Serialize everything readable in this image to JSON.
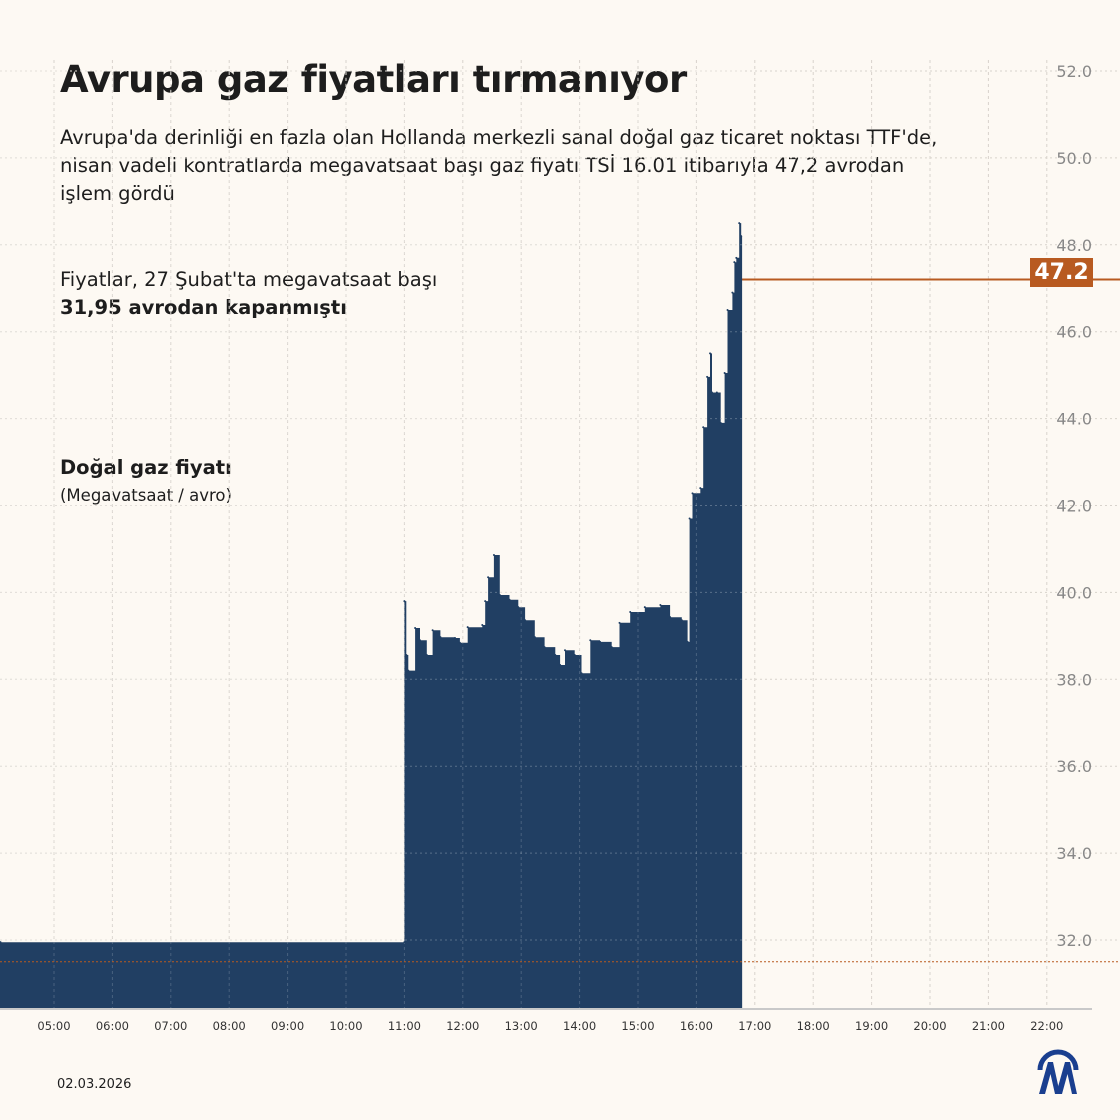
{
  "header": {
    "title": "Avrupa gaz fiyatları tırmanıyor",
    "subtitle": "Avrupa'da derinliği en fazla olan Hollanda merkezli sanal doğal gaz ticaret noktası TTF'de, nisan vadeli kontratlarda megavatsaat başı gaz fiyatı TSİ 16.01 itibarıyla 47,2 avrodan işlem gördü"
  },
  "note": {
    "text_before": "Fiyatlar, 27 Şubat'ta megavatsaat başı ",
    "text_bold": "31,95 avrodan kapanmıştı"
  },
  "footer": {
    "date": "02.03.2026",
    "logo_text": "AA"
  },
  "colors": {
    "background": "#fdf9f3",
    "area": "#213f63",
    "accent": "#b85a20",
    "axis_text": "#888888"
  },
  "chart_data": {
    "type": "area",
    "title": "Doğal gaz fiyatı",
    "ylabel": "(Megavatsaat / avro)",
    "xlabel": "",
    "ylim": [
      30.5,
      52.5
    ],
    "y_axis_position": "right",
    "yticks": [
      "32.0",
      "34.0",
      "36.0",
      "38.0",
      "40.0",
      "42.0",
      "44.0",
      "46.0",
      "48.0",
      "50.0",
      "52.0"
    ],
    "xticks": [
      "05:00",
      "06:00",
      "07:00",
      "08:00",
      "09:00",
      "10:00",
      "11:00",
      "12:00",
      "13:00",
      "14:00",
      "15:00",
      "16:00",
      "17:00",
      "18:00",
      "19:00",
      "20:00",
      "21:00",
      "22:00"
    ],
    "grid": true,
    "last_value_label": "47.2",
    "reference_line": 31.5,
    "series": [
      {
        "x": [
          "04:05",
          "11:00",
          "11:00",
          "11:02",
          "11:04",
          "11:11",
          "11:16",
          "11:23",
          "11:29",
          "11:37",
          "11:52",
          "11:57",
          "12:05",
          "12:20",
          "12:23",
          "12:26",
          "12:32",
          "12:38",
          "12:48",
          "12:57",
          "13:04",
          "13:14",
          "13:24",
          "13:35",
          "13:40",
          "13:45",
          "13:55",
          "14:02",
          "14:11",
          "14:21",
          "14:33",
          "14:41",
          "14:52",
          "15:07",
          "15:23",
          "15:33",
          "15:45",
          "15:51",
          "15:53",
          "15:56",
          "16:04",
          "16:07",
          "16:11",
          "16:14",
          "16:16",
          "16:21",
          "16:25",
          "16:29",
          "16:32",
          "16:37",
          "16:39",
          "16:41",
          "16:44",
          "16:46",
          "16:47"
        ],
        "y": [
          31.95,
          31.95,
          39.8,
          38.56,
          38.2,
          39.18,
          38.9,
          38.56,
          39.13,
          38.97,
          38.95,
          38.84,
          39.2,
          39.25,
          39.8,
          40.35,
          40.86,
          39.94,
          39.83,
          39.66,
          39.36,
          38.97,
          38.74,
          38.56,
          38.33,
          38.67,
          38.56,
          38.14,
          38.9,
          38.86,
          38.74,
          39.3,
          39.55,
          39.66,
          39.71,
          39.43,
          39.36,
          38.86,
          41.7,
          42.28,
          42.4,
          43.8,
          44.96,
          45.5,
          44.6,
          44.6,
          43.9,
          45.05,
          46.5,
          46.9,
          47.6,
          47.7,
          48.5,
          48.2,
          47.2
        ]
      }
    ]
  }
}
